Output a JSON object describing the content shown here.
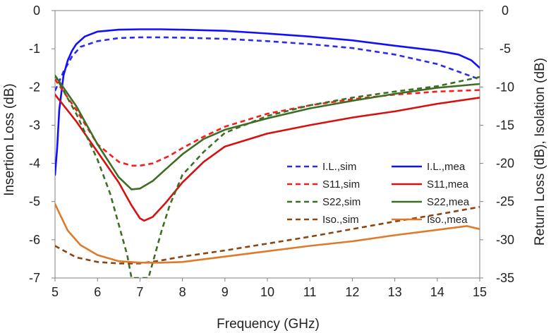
{
  "chart_data": {
    "type": "line",
    "xlabel": "Frequency (GHz)",
    "ylabel_left": "Insertion Loss (dB)",
    "ylabel_right": "Return Loss (dB), Isolation (dB)",
    "xlim": [
      5,
      15
    ],
    "ylim_left": [
      -7,
      0
    ],
    "ylim_right": [
      -35,
      0
    ],
    "x_ticks": [
      "5",
      "6",
      "7",
      "8",
      "9",
      "10",
      "11",
      "12",
      "13",
      "14",
      "15"
    ],
    "y_left_ticks": [
      "0",
      "-1",
      "-2",
      "-3",
      "-4",
      "-5",
      "-6",
      "-7"
    ],
    "y_right_ticks": [
      "0",
      "-5",
      "-10",
      "-15",
      "-20",
      "-25",
      "-30",
      "-35"
    ],
    "grid": false,
    "legend_placement": "center-right",
    "series": [
      {
        "name": "I.L.,sim",
        "axis": "left",
        "color": "#2b2bef",
        "dash": true,
        "x": [
          5.0,
          5.2,
          5.4,
          5.6,
          6.0,
          6.5,
          7.0,
          7.5,
          8,
          9,
          10,
          11,
          12,
          13,
          14,
          15
        ],
        "y": [
          -2.1,
          -1.6,
          -1.2,
          -0.95,
          -0.8,
          -0.72,
          -0.7,
          -0.7,
          -0.71,
          -0.74,
          -0.8,
          -0.88,
          -0.98,
          -1.15,
          -1.4,
          -1.8
        ]
      },
      {
        "name": "I.L.,mea",
        "axis": "left",
        "color": "#1010ff",
        "dash": false,
        "x": [
          5.0,
          5.05,
          5.1,
          5.2,
          5.3,
          5.4,
          5.5,
          5.7,
          6.0,
          6.5,
          7.0,
          7.5,
          8,
          9,
          10,
          11,
          12,
          13,
          14,
          14.5,
          14.8,
          15
        ],
        "y": [
          -4.3,
          -3.6,
          -2.6,
          -1.7,
          -1.3,
          -1.05,
          -0.88,
          -0.68,
          -0.55,
          -0.5,
          -0.49,
          -0.49,
          -0.5,
          -0.53,
          -0.6,
          -0.68,
          -0.78,
          -0.92,
          -1.05,
          -1.15,
          -1.3,
          -1.5
        ]
      },
      {
        "name": "S11,sim",
        "axis": "right",
        "color": "#ff1a1a",
        "dash": true,
        "x": [
          5,
          5.5,
          6,
          6.5,
          6.8,
          7,
          7.3,
          7.7,
          8,
          8.5,
          9,
          10,
          11,
          12,
          13,
          14,
          15
        ],
        "y": [
          -9,
          -13,
          -17.5,
          -19.8,
          -20.3,
          -20.3,
          -20,
          -19,
          -18,
          -16.5,
          -15.2,
          -13.5,
          -12.4,
          -11.6,
          -11,
          -10.6,
          -10.4
        ]
      },
      {
        "name": "S11,mea",
        "axis": "right",
        "color": "#d81010",
        "dash": false,
        "x": [
          5,
          5.5,
          6,
          6.5,
          6.8,
          7,
          7.1,
          7.3,
          7.6,
          8,
          8.5,
          9,
          10,
          11,
          12,
          13,
          14,
          15
        ],
        "y": [
          -11,
          -14.5,
          -18.5,
          -22.5,
          -25.5,
          -27.2,
          -27.5,
          -27,
          -25.2,
          -22.5,
          -19.8,
          -17.8,
          -16.1,
          -15,
          -14,
          -13.2,
          -12.2,
          -11.4
        ]
      },
      {
        "name": "S22,sim",
        "axis": "right",
        "color": "#3d6e23",
        "dash": true,
        "x": [
          5,
          5.5,
          6,
          6.3,
          6.5,
          6.7,
          6.8,
          7.2,
          7.3,
          7.5,
          7.7,
          8,
          8.5,
          9,
          10,
          11,
          12,
          13,
          14,
          15
        ],
        "y": [
          -8.5,
          -13.5,
          -19.5,
          -24,
          -28,
          -32,
          -35,
          -35,
          -33,
          -29,
          -25.5,
          -21.5,
          -18.5,
          -16,
          -13.8,
          -12.4,
          -11.4,
          -10.6,
          -9.9,
          -8.7
        ]
      },
      {
        "name": "S22,mea",
        "axis": "right",
        "color": "#3d6e23",
        "dash": false,
        "x": [
          5,
          5.5,
          6,
          6.5,
          6.8,
          7,
          7.3,
          7.7,
          8,
          8.5,
          9,
          10,
          11,
          12,
          13,
          14,
          15
        ],
        "y": [
          -8.5,
          -12.5,
          -17.5,
          -21.8,
          -23.4,
          -23.3,
          -22.3,
          -20.3,
          -18.8,
          -16.8,
          -15.6,
          -14.1,
          -12.8,
          -11.8,
          -10.9,
          -10.1,
          -9.6
        ]
      },
      {
        "name": "Iso.,sim",
        "axis": "right",
        "color": "#8b4513",
        "dash": true,
        "x": [
          5,
          5.5,
          6,
          6.5,
          7,
          7.5,
          8,
          9,
          10,
          11,
          12,
          13,
          14,
          15
        ],
        "y": [
          -30.8,
          -32.3,
          -32.9,
          -33.1,
          -33.1,
          -32.7,
          -32.2,
          -31.4,
          -30.5,
          -29.6,
          -28.6,
          -27.6,
          -26.7,
          -25.7
        ]
      },
      {
        "name": "Iso.,mea",
        "axis": "right",
        "color": "#e07a2b",
        "dash": false,
        "x": [
          5,
          5.1,
          5.3,
          5.6,
          6,
          6.5,
          7,
          7.5,
          8,
          9,
          10,
          11,
          12,
          13,
          14,
          14.7,
          15
        ],
        "y": [
          -25.3,
          -26.5,
          -28.8,
          -30.7,
          -32,
          -32.8,
          -33,
          -33,
          -32.9,
          -32.2,
          -31.5,
          -30.8,
          -30.2,
          -29.4,
          -28.7,
          -28.2,
          -28.6
        ]
      }
    ]
  }
}
